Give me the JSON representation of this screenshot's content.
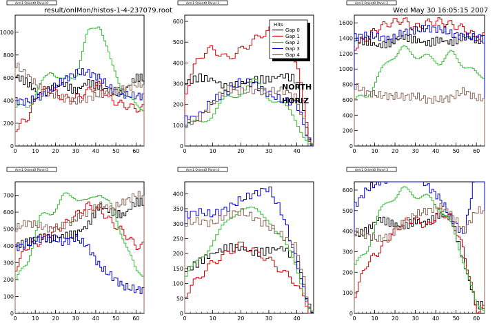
{
  "header": {
    "file_name": "result/onlMon/histos-1-4-237079.root",
    "timestamp": "Wed May 30 16:05:15 2007"
  },
  "annotation": {
    "line1": "NORTH",
    "line2": "HORIZ"
  },
  "legend": {
    "title": "Hits",
    "entries": [
      "Gap 0",
      "Gap 1",
      "Gap 2",
      "Gap 3",
      "Gap 4"
    ],
    "placement": "top-right of Panel 1"
  },
  "colors": {
    "Gap 0": "#000000",
    "Gap 1": "#cc0000",
    "Gap 2": "#33bb33",
    "Gap 3": "#0000cc",
    "Gap 4": "#8b6355"
  },
  "chart_data": [
    {
      "type": "line",
      "title": "Arm1 Orient0 Panel 0",
      "xlim": [
        0,
        64
      ],
      "ylim": [
        0,
        1150
      ],
      "xticks": [
        0,
        10,
        20,
        30,
        40,
        50,
        60
      ],
      "yticks": [
        200,
        400,
        600,
        800,
        1000
      ],
      "grid": false,
      "x": [
        0,
        6,
        12,
        18,
        24,
        30,
        36,
        42,
        48,
        54,
        60
      ],
      "series": [
        {
          "name": "Gap 0",
          "values": [
            620,
            560,
            450,
            500,
            550,
            480,
            560,
            520,
            480,
            480,
            600
          ]
        },
        {
          "name": "Gap 1",
          "values": [
            150,
            240,
            480,
            500,
            420,
            420,
            480,
            540,
            400,
            360,
            330
          ]
        },
        {
          "name": "Gap 2",
          "values": [
            320,
            350,
            500,
            680,
            560,
            620,
            980,
            1090,
            700,
            480,
            340
          ]
        },
        {
          "name": "Gap 3",
          "values": [
            400,
            390,
            430,
            500,
            580,
            640,
            650,
            600,
            500,
            450,
            440
          ]
        },
        {
          "name": "Gap 4",
          "values": [
            720,
            620,
            520,
            460,
            420,
            390,
            420,
            450,
            470,
            500,
            540
          ]
        }
      ]
    },
    {
      "type": "line",
      "title": "Arm1 Orient0 Panel 1",
      "xlim": [
        0,
        46
      ],
      "ylim": [
        0,
        630
      ],
      "xticks": [
        0,
        10,
        20,
        30,
        40
      ],
      "yticks": [
        100,
        200,
        300,
        400,
        500,
        600
      ],
      "grid": false,
      "x": [
        0,
        5,
        10,
        15,
        20,
        25,
        30,
        35,
        40,
        45
      ],
      "series": [
        {
          "name": "Gap 0",
          "values": [
            300,
            330,
            320,
            280,
            300,
            320,
            320,
            340,
            320,
            0
          ]
        },
        {
          "name": "Gap 1",
          "values": [
            250,
            430,
            470,
            420,
            460,
            510,
            560,
            520,
            410,
            0
          ]
        },
        {
          "name": "Gap 2",
          "values": [
            80,
            120,
            150,
            230,
            260,
            310,
            240,
            200,
            120,
            0
          ]
        },
        {
          "name": "Gap 3",
          "values": [
            130,
            140,
            220,
            260,
            310,
            300,
            250,
            220,
            210,
            0
          ]
        },
        {
          "name": "Gap 4",
          "values": [
            100,
            130,
            200,
            280,
            260,
            270,
            260,
            270,
            230,
            0
          ]
        }
      ]
    },
    {
      "type": "line",
      "title": "Arm1 Orient0 Panel 2",
      "xlim": [
        0,
        64
      ],
      "ylim": [
        0,
        1700
      ],
      "xticks": [
        0,
        10,
        20,
        30,
        40,
        50,
        60
      ],
      "yticks": [
        200,
        400,
        600,
        800,
        1000,
        1200,
        1400,
        1600
      ],
      "grid": false,
      "x": [
        0,
        6,
        12,
        18,
        24,
        30,
        36,
        42,
        48,
        54,
        60
      ],
      "series": [
        {
          "name": "Gap 0",
          "values": [
            1380,
            1360,
            1300,
            1340,
            1420,
            1380,
            1330,
            1380,
            1340,
            1430,
            1380
          ]
        },
        {
          "name": "Gap 1",
          "values": [
            1280,
            1400,
            1540,
            1600,
            1640,
            1540,
            1600,
            1620,
            1580,
            1520,
            1420
          ]
        },
        {
          "name": "Gap 2",
          "values": [
            580,
            650,
            900,
            1160,
            1260,
            1190,
            1140,
            1100,
            1200,
            1060,
            920
          ]
        },
        {
          "name": "Gap 3",
          "values": [
            1420,
            1440,
            1420,
            1380,
            1480,
            1500,
            1530,
            1520,
            1460,
            1420,
            1410
          ]
        },
        {
          "name": "Gap 4",
          "values": [
            780,
            700,
            660,
            650,
            640,
            650,
            600,
            600,
            630,
            720,
            620
          ]
        }
      ]
    },
    {
      "type": "line",
      "title": "Arm1 Orient0 Panel 5",
      "xlim": [
        0,
        64
      ],
      "ylim": [
        0,
        780
      ],
      "xticks": [
        0,
        10,
        20,
        30,
        40,
        50,
        60
      ],
      "yticks": [
        100,
        200,
        300,
        400,
        500,
        600,
        700
      ],
      "grid": false,
      "x": [
        0,
        6,
        12,
        18,
        24,
        30,
        36,
        42,
        48,
        54,
        60
      ],
      "series": [
        {
          "name": "Gap 0",
          "values": [
            400,
            420,
            460,
            440,
            460,
            470,
            520,
            640,
            600,
            580,
            660
          ]
        },
        {
          "name": "Gap 1",
          "values": [
            260,
            400,
            420,
            480,
            520,
            580,
            640,
            620,
            540,
            480,
            400
          ]
        },
        {
          "name": "Gap 2",
          "values": [
            180,
            300,
            560,
            600,
            690,
            700,
            650,
            730,
            620,
            450,
            240
          ]
        },
        {
          "name": "Gap 3",
          "values": [
            390,
            410,
            440,
            450,
            420,
            450,
            400,
            280,
            220,
            160,
            140
          ]
        },
        {
          "name": "Gap 4",
          "values": [
            500,
            540,
            520,
            500,
            520,
            560,
            600,
            640,
            620,
            660,
            700
          ]
        }
      ]
    },
    {
      "type": "line",
      "title": "Arm1 Orient0 Panel 4",
      "xlim": [
        0,
        46
      ],
      "ylim": [
        0,
        440
      ],
      "xticks": [
        0,
        10,
        20,
        30,
        40
      ],
      "yticks": [
        50,
        100,
        150,
        200,
        250,
        300,
        350,
        400
      ],
      "grid": false,
      "x": [
        0,
        5,
        10,
        15,
        20,
        25,
        30,
        35,
        40,
        45
      ],
      "series": [
        {
          "name": "Gap 0",
          "values": [
            140,
            170,
            200,
            220,
            220,
            200,
            210,
            220,
            180,
            0
          ]
        },
        {
          "name": "Gap 1",
          "values": [
            60,
            120,
            170,
            200,
            230,
            210,
            180,
            140,
            100,
            0
          ]
        },
        {
          "name": "Gap 2",
          "values": [
            110,
            180,
            240,
            300,
            360,
            340,
            320,
            240,
            160,
            0
          ]
        },
        {
          "name": "Gap 3",
          "values": [
            330,
            340,
            330,
            350,
            380,
            400,
            420,
            330,
            180,
            0
          ]
        },
        {
          "name": "Gap 4",
          "values": [
            300,
            310,
            300,
            330,
            340,
            320,
            290,
            260,
            220,
            0
          ]
        }
      ]
    },
    {
      "type": "line",
      "title": "Arm1 Orient0 Panel 3",
      "xlim": [
        0,
        64
      ],
      "ylim": [
        0,
        640
      ],
      "xticks": [
        0,
        10,
        20,
        30,
        40,
        50,
        60
      ],
      "yticks": [
        100,
        200,
        300,
        400,
        500,
        600
      ],
      "grid": false,
      "x": [
        0,
        6,
        12,
        18,
        24,
        30,
        36,
        42,
        48,
        54,
        60
      ],
      "series": [
        {
          "name": "Gap 0",
          "values": [
            380,
            400,
            460,
            440,
            420,
            450,
            440,
            480,
            460,
            240,
            40
          ]
        },
        {
          "name": "Gap 1",
          "values": [
            80,
            240,
            300,
            380,
            440,
            460,
            420,
            500,
            460,
            300,
            20
          ]
        },
        {
          "name": "Gap 2",
          "values": [
            220,
            300,
            480,
            560,
            600,
            580,
            560,
            520,
            420,
            250,
            30
          ]
        },
        {
          "name": "Gap 3",
          "values": [
            520,
            600,
            640,
            660,
            720,
            680,
            620,
            560,
            460,
            380,
            700
          ]
        },
        {
          "name": "Gap 4",
          "values": [
            400,
            380,
            360,
            380,
            440,
            480,
            500,
            520,
            480,
            400,
            500
          ]
        }
      ]
    }
  ]
}
